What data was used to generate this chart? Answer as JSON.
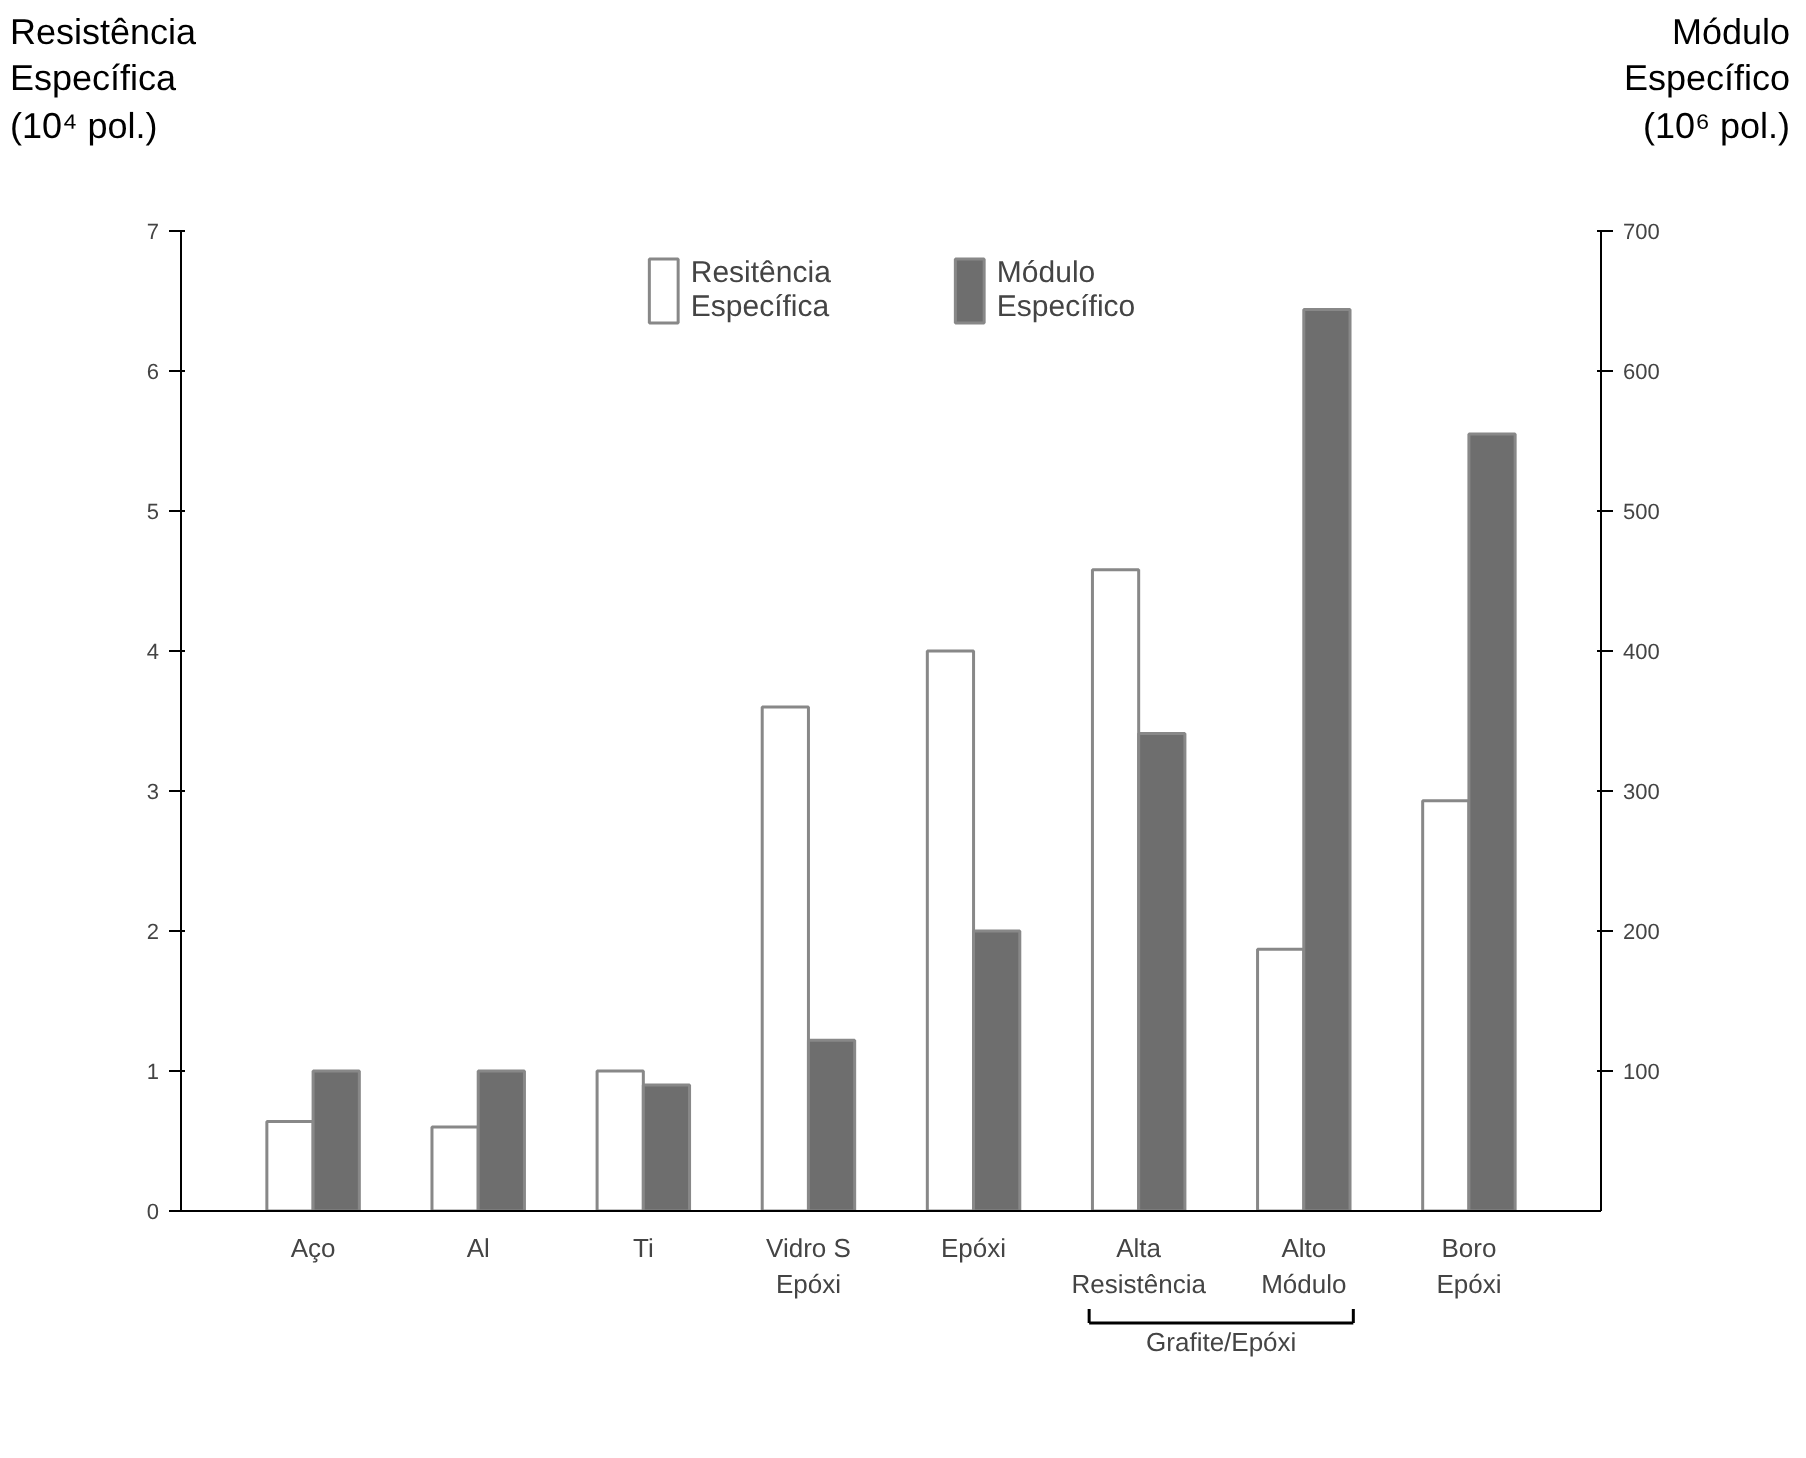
{
  "chart_data": {
    "type": "bar",
    "ylabel": "Resistência\nEspecífica\n(10⁴ pol.)",
    "y2label": "Módulo\nEspecífico\n(10⁶ pol.)",
    "categories": [
      "Aço",
      "Al",
      "Ti",
      "Vidro S\nEpóxi",
      "Epóxi",
      "Alta\nResistência",
      "Alto\nMódulo",
      "Boro\nEpóxi"
    ],
    "series": [
      {
        "name": "Resitência\nEspecífica",
        "color": "#ffffff",
        "values": [
          0.64,
          0.6,
          1.0,
          3.6,
          4.0,
          4.58,
          1.87,
          2.93
        ]
      },
      {
        "name": "Módulo\nEspecífico",
        "color": "#6e6e6e",
        "axis": "y2",
        "values": [
          100,
          100,
          90,
          122,
          200,
          341,
          644,
          555
        ]
      }
    ],
    "ylim": [
      0,
      7
    ],
    "yticks": [
      0,
      1,
      2,
      3,
      4,
      5,
      6,
      7
    ],
    "y2lim": [
      0,
      700
    ],
    "y2ticks": [
      100,
      200,
      300,
      400,
      500,
      600,
      700
    ],
    "grid": false,
    "legend": "top",
    "annotations": [
      "Grafite/Epóxi"
    ]
  }
}
